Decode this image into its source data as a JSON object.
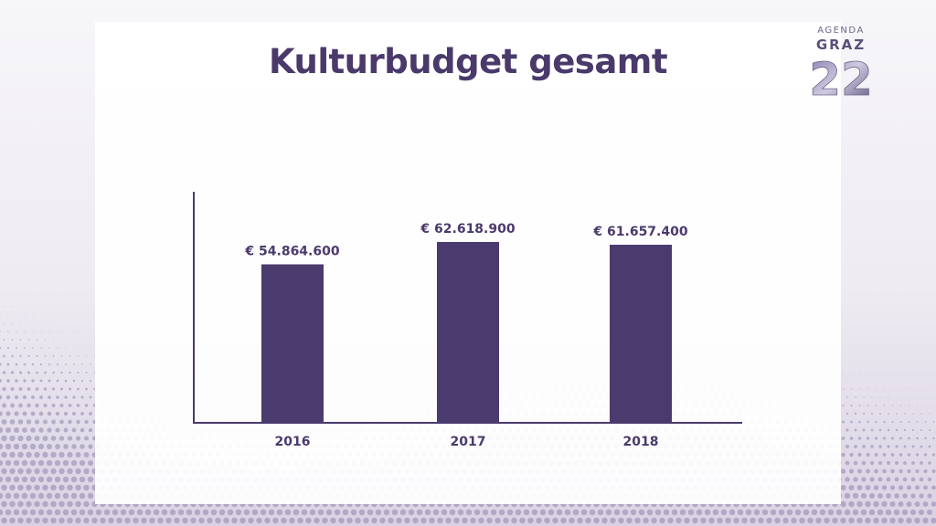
{
  "slide": {
    "title": "Kulturbudget gesamt"
  },
  "logo": {
    "line1": "AGENDA",
    "line2": "GRAZ",
    "number": "22"
  },
  "colors": {
    "bar": "#4b3a6d",
    "axis": "#4b3a6d",
    "title": "#4a3a6b",
    "label": "#4b3a6d"
  },
  "chart_data": {
    "type": "bar",
    "title": "Kulturbudget gesamt",
    "xlabel": "",
    "ylabel": "",
    "categories": [
      "2016",
      "2017",
      "2018"
    ],
    "values": [
      54864600,
      62618900,
      61657400
    ],
    "data_labels": [
      "€ 54.864.600",
      "€ 62.618.900",
      "€ 61.657.400"
    ],
    "ylim": [
      0,
      80000000
    ],
    "grid": false,
    "legend": "none"
  }
}
